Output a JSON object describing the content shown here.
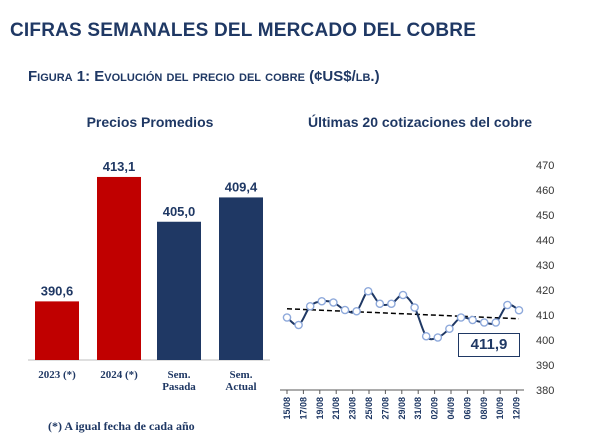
{
  "title": "CIFRAS SEMANALES DEL MERCADO DEL COBRE",
  "subtitle": "Figura 1: Evolución del precio del cobre (¢US$/lb.)",
  "footnote": "(*) A igual fecha de cada año",
  "chart_data": [
    {
      "type": "bar",
      "title": "Precios Promedios",
      "categories": [
        "2023 (*)",
        "2024 (*)",
        "Sem. Pasada",
        "Sem. Actual"
      ],
      "values": [
        390.6,
        413.1,
        405.0,
        409.4
      ],
      "value_labels": [
        "390,6",
        "413,1",
        "405,0",
        "409,4"
      ],
      "colors": [
        "#c00000",
        "#c00000",
        "#1f3864",
        "#1f3864"
      ]
    },
    {
      "type": "line",
      "title": "Últimas 20 cotizaciones del cobre",
      "x": [
        "15/08",
        "16/08",
        "19/08",
        "20/08",
        "21/08",
        "22/08",
        "23/08",
        "26/08",
        "27/08",
        "28/08",
        "29/08",
        "30/08",
        "02/09",
        "03/09",
        "04/09",
        "05/09",
        "06/09",
        "09/09",
        "10/09",
        "11/09",
        "12/09"
      ],
      "x_tick_labels": [
        "15/08",
        "17/08",
        "19/08",
        "21/08",
        "23/08",
        "25/08",
        "27/08",
        "29/08",
        "31/08",
        "02/09",
        "04/09",
        "06/09",
        "08/09",
        "10/09",
        "12/09"
      ],
      "series": [
        {
          "values": [
            409,
            406,
            413.5,
            415.5,
            415,
            412,
            411.5,
            419.5,
            414.5,
            414.5,
            418,
            413,
            401.5,
            401,
            404.5,
            409,
            408,
            407,
            407,
            414,
            411.9
          ],
          "color": "#1f3864"
        }
      ],
      "trendline": {
        "start": 412.5,
        "end": 408.5
      },
      "ylim": [
        380,
        470
      ],
      "yticks": [
        380,
        390,
        400,
        410,
        420,
        430,
        440,
        450,
        460,
        470
      ],
      "last_value_label": "411,9"
    }
  ]
}
